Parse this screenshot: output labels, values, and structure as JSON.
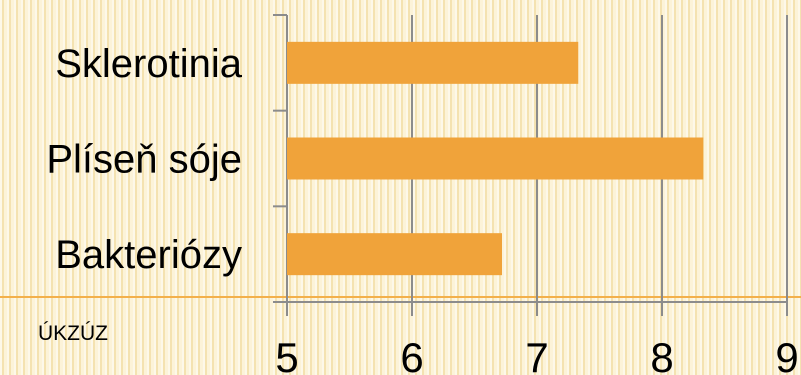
{
  "chart_data": {
    "type": "bar",
    "orientation": "horizontal",
    "categories": [
      "Sklerotinia",
      "Plíseň sóje",
      "Bakteriózy"
    ],
    "values": [
      7.33,
      8.33,
      6.72
    ],
    "xlim": [
      5,
      9
    ],
    "xticks": [
      5,
      6,
      7,
      8,
      9
    ],
    "grid": true,
    "bar_color": "#f0a33a",
    "axis_color": "#8c8c8c"
  },
  "footer": {
    "source_label": "ÚKZÚZ"
  },
  "colors": {
    "accent_line": "#f3b04b"
  }
}
